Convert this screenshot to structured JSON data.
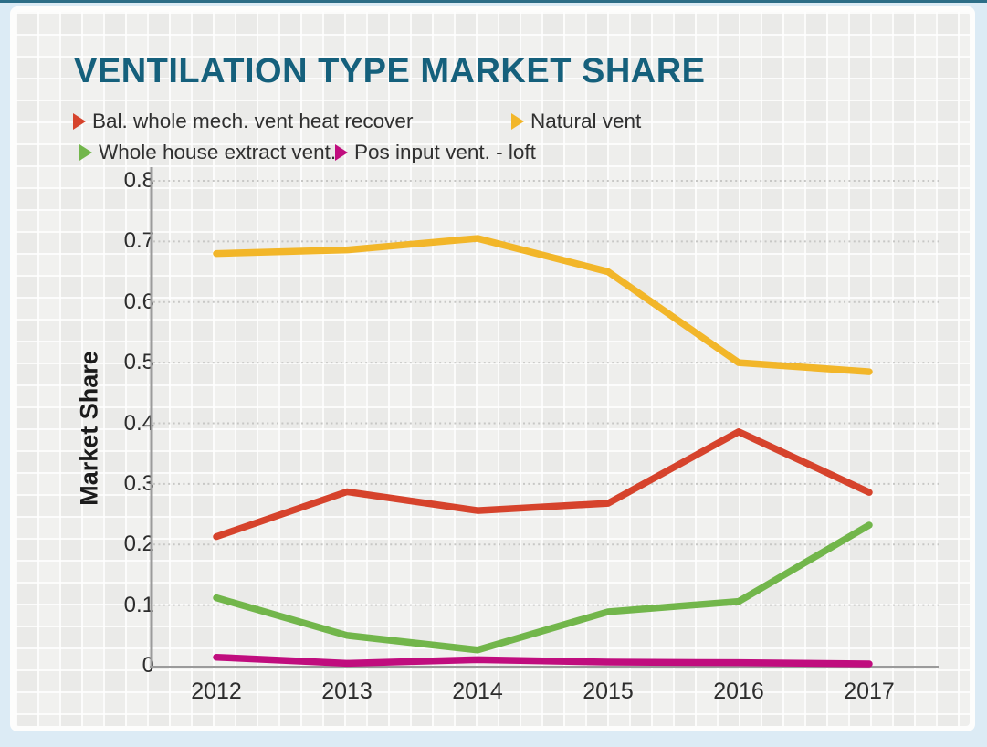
{
  "title": "VENTILATION TYPE MARKET SHARE",
  "colors": {
    "title": "#15607c",
    "page_background": "#dcebf5",
    "card_background": "#fdfdfc",
    "panel_background": "#f1f1ef",
    "axis": "#9b9b9b",
    "gridline": "#c7c7c5",
    "tick_text": "#2d2d2d"
  },
  "legend": [
    {
      "label": "Bal. whole mech. vent heat recover",
      "color": "#d6432c"
    },
    {
      "label": "Natural vent",
      "color": "#f2b629"
    },
    {
      "label": "Whole house extract vent.",
      "color": "#72b64b"
    },
    {
      "label": "Pos input vent. - loft",
      "color": "#c00d7e"
    }
  ],
  "chart_data": {
    "type": "line",
    "title": "VENTILATION TYPE MARKET SHARE",
    "xlabel": "",
    "ylabel": "Market Share",
    "x": [
      2012,
      2013,
      2014,
      2015,
      2016,
      2017
    ],
    "series": [
      {
        "name": "Bal. whole mech. vent heat recover",
        "color": "#d6432c",
        "values": [
          0.213,
          0.287,
          0.256,
          0.268,
          0.386,
          0.286
        ]
      },
      {
        "name": "Natural vent",
        "color": "#f2b629",
        "values": [
          0.68,
          0.686,
          0.705,
          0.65,
          0.5,
          0.485
        ]
      },
      {
        "name": "Whole house extract vent.",
        "color": "#72b64b",
        "values": [
          0.112,
          0.05,
          0.026,
          0.089,
          0.106,
          0.232
        ]
      },
      {
        "name": "Pos input vent. - loft",
        "color": "#c00d7e",
        "values": [
          0.014,
          0.004,
          0.01,
          0.006,
          0.005,
          0.003
        ]
      }
    ],
    "ylim": [
      0,
      0.8
    ],
    "yticks": [
      "0",
      "0.1",
      "0.2",
      "0.3",
      "0.4",
      "0.5",
      "0.6",
      "0.7",
      "0.8"
    ],
    "grid": true,
    "gridline_style": "dotted",
    "legend_position": "top-left"
  }
}
